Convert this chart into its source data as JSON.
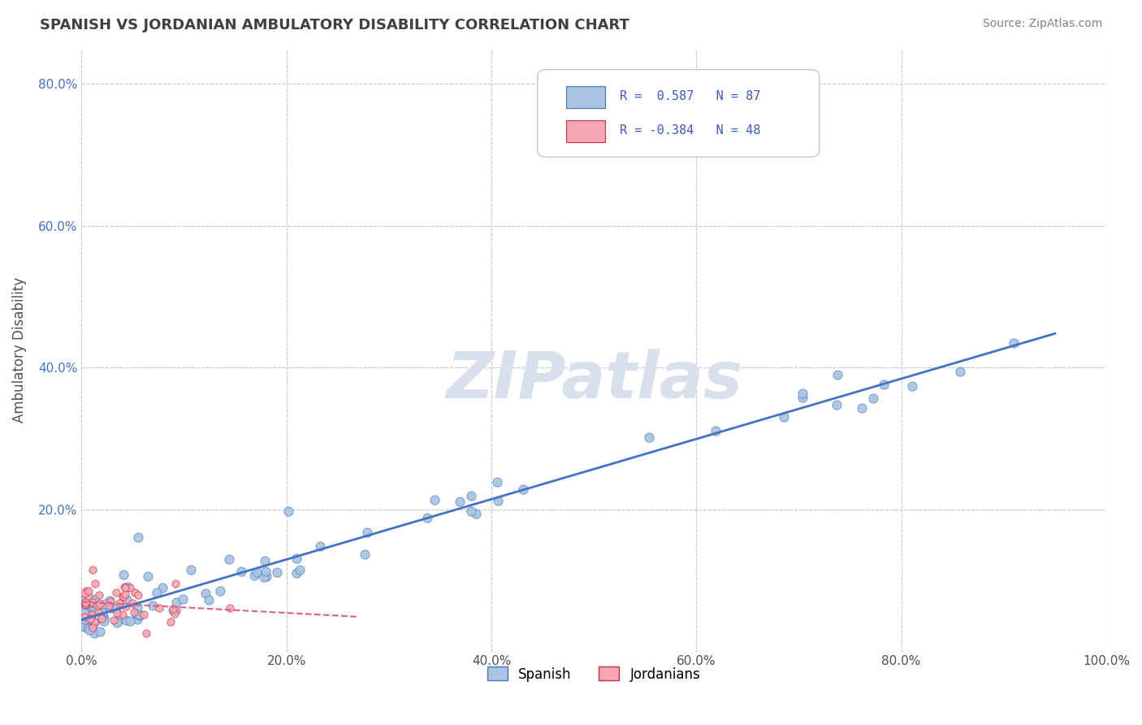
{
  "title": "SPANISH VS JORDANIAN AMBULATORY DISABILITY CORRELATION CHART",
  "source": "Source: ZipAtlas.com",
  "ylabel": "Ambulatory Disability",
  "xlim": [
    0.0,
    1.0
  ],
  "ylim": [
    0.0,
    0.85
  ],
  "xtick_values": [
    0.0,
    0.2,
    0.4,
    0.6,
    0.8,
    1.0
  ],
  "xtick_labels": [
    "0.0%",
    "20.0%",
    "40.0%",
    "60.0%",
    "80.0%",
    "100.0%"
  ],
  "ytick_values": [
    0.2,
    0.4,
    0.6,
    0.8
  ],
  "ytick_labels": [
    "20.0%",
    "40.0%",
    "60.0%",
    "80.0%"
  ],
  "legend_r1": "R =  0.587",
  "legend_n1": "N = 87",
  "legend_r2": "R = -0.384",
  "legend_n2": "N = 48",
  "n_spanish": 87,
  "n_jordanian": 48,
  "r_spanish": 0.587,
  "r_jordanian": -0.384,
  "spanish_color": "#a8c4e0",
  "jordanian_color": "#f4a7b0",
  "spanish_line_color": "#4472c4",
  "jordanian_line_color": "#e06080",
  "background_color": "#ffffff",
  "grid_color": "#c0c8d8",
  "title_color": "#404040",
  "source_color": "#808080",
  "legend_text_color": "#3a5bbf",
  "watermark_color": "#d8e0ec"
}
